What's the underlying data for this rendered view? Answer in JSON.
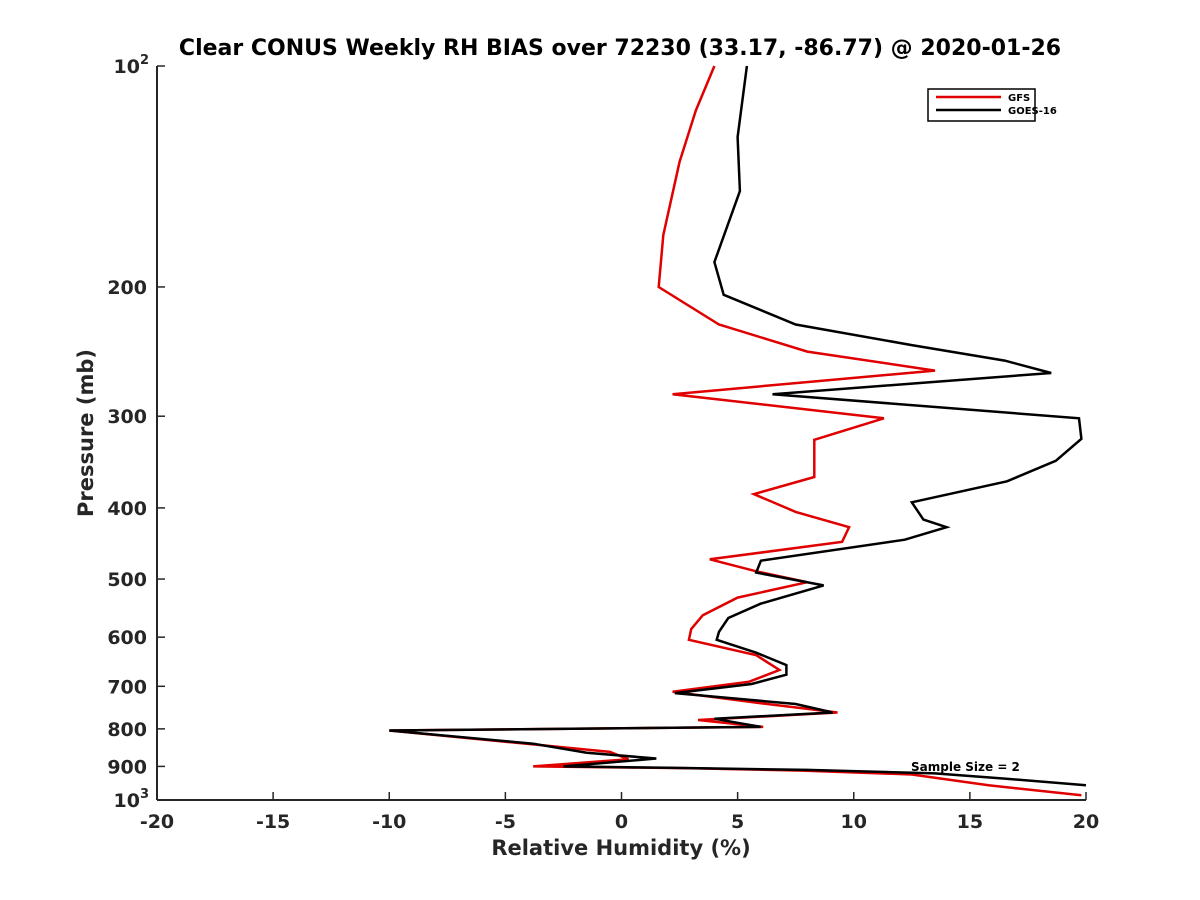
{
  "chart_data": {
    "type": "line",
    "title": "Clear CONUS Weekly RH BIAS over 72230 (33.17, -86.77) @ 2020-01-26",
    "xlabel": "Relative Humidity (%)",
    "ylabel": "Pressure (mb)",
    "xlim": [
      -20,
      20
    ],
    "ylim": [
      100,
      1000
    ],
    "y_scale": "log",
    "y_reversed": true,
    "x_ticks": [
      -20,
      -15,
      -10,
      -5,
      0,
      5,
      10,
      15,
      20
    ],
    "y_ticks": [
      {
        "value": 100,
        "label": "10",
        "exp": "2"
      },
      {
        "value": 200,
        "label": "200"
      },
      {
        "value": 300,
        "label": "300"
      },
      {
        "value": 400,
        "label": "400"
      },
      {
        "value": 500,
        "label": "500"
      },
      {
        "value": 600,
        "label": "600"
      },
      {
        "value": 700,
        "label": "700"
      },
      {
        "value": 800,
        "label": "800"
      },
      {
        "value": 900,
        "label": "900"
      },
      {
        "value": 1000,
        "label": "10",
        "exp": "3"
      }
    ],
    "grid": false,
    "legend_position": "top-right",
    "annotation": "Sample Size = 2",
    "series": [
      {
        "name": "GFS",
        "color": "#e00000",
        "points": [
          [
            4.0,
            100
          ],
          [
            3.2,
            115
          ],
          [
            2.5,
            135
          ],
          [
            1.8,
            170
          ],
          [
            1.6,
            200
          ],
          [
            4.2,
            225
          ],
          [
            8.0,
            245
          ],
          [
            13.5,
            260
          ],
          [
            2.2,
            280
          ],
          [
            11.3,
            302
          ],
          [
            8.3,
            323
          ],
          [
            8.3,
            345
          ],
          [
            8.3,
            363
          ],
          [
            5.7,
            383
          ],
          [
            7.5,
            405
          ],
          [
            9.8,
            425
          ],
          [
            9.5,
            445
          ],
          [
            3.8,
            470
          ],
          [
            5.8,
            488
          ],
          [
            8.0,
            505
          ],
          [
            5.0,
            530
          ],
          [
            3.5,
            560
          ],
          [
            3.0,
            585
          ],
          [
            2.9,
            605
          ],
          [
            5.8,
            635
          ],
          [
            6.8,
            665
          ],
          [
            5.5,
            690
          ],
          [
            2.2,
            712
          ],
          [
            6.0,
            738
          ],
          [
            9.3,
            760
          ],
          [
            3.3,
            778
          ],
          [
            6.1,
            795
          ],
          [
            -10.0,
            804
          ],
          [
            -3.8,
            840
          ],
          [
            -0.5,
            860
          ],
          [
            0.3,
            880
          ],
          [
            -3.8,
            900
          ],
          [
            3.0,
            905
          ],
          [
            7.8,
            912
          ],
          [
            12.5,
            923
          ],
          [
            15.8,
            955
          ],
          [
            19.8,
            985
          ]
        ]
      },
      {
        "name": "GOES-16",
        "color": "#000000",
        "points": [
          [
            5.4,
            100
          ],
          [
            5.0,
            125
          ],
          [
            5.1,
            148
          ],
          [
            4.0,
            185
          ],
          [
            4.4,
            205
          ],
          [
            7.5,
            225
          ],
          [
            12.5,
            240
          ],
          [
            16.5,
            252
          ],
          [
            18.5,
            262
          ],
          [
            6.5,
            280
          ],
          [
            19.7,
            302
          ],
          [
            19.8,
            322
          ],
          [
            18.7,
            345
          ],
          [
            16.6,
            368
          ],
          [
            12.5,
            393
          ],
          [
            13.0,
            415
          ],
          [
            14.0,
            425
          ],
          [
            12.2,
            442
          ],
          [
            6.0,
            472
          ],
          [
            5.8,
            490
          ],
          [
            8.7,
            510
          ],
          [
            6.0,
            540
          ],
          [
            4.6,
            565
          ],
          [
            4.2,
            590
          ],
          [
            4.1,
            605
          ],
          [
            5.8,
            630
          ],
          [
            7.1,
            655
          ],
          [
            7.1,
            675
          ],
          [
            5.6,
            695
          ],
          [
            2.3,
            715
          ],
          [
            7.5,
            740
          ],
          [
            9.1,
            760
          ],
          [
            4.0,
            775
          ],
          [
            5.0,
            785
          ],
          [
            6.0,
            795
          ],
          [
            -10.0,
            804
          ],
          [
            -3.8,
            838
          ],
          [
            -1.5,
            862
          ],
          [
            1.5,
            878
          ],
          [
            -2.5,
            900
          ],
          [
            2.0,
            904
          ],
          [
            8.0,
            910
          ],
          [
            13.5,
            920
          ],
          [
            16.5,
            935
          ],
          [
            20.0,
            955
          ]
        ]
      }
    ]
  }
}
